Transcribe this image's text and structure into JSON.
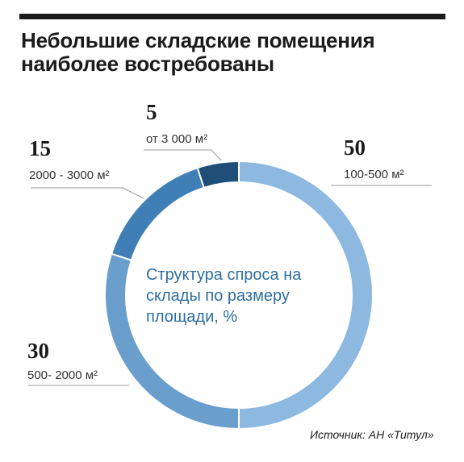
{
  "header": {
    "title_line1": "Небольшие складские помещения",
    "title_line2": "наиболее востребованы"
  },
  "chart_data": {
    "type": "pie",
    "donut": true,
    "center_text": "Структура спроса на склады по размеру площади, %",
    "center_lines": [
      "Структура спроса на",
      "склады по размеру",
      "площади, %"
    ],
    "categories": [
      "100-500 м²",
      "500- 2000 м²",
      "2000 - 3000 м²",
      "от 3 000 м²"
    ],
    "values": [
      50,
      30,
      15,
      5
    ],
    "unit": "%",
    "colors": [
      "#8db8e0",
      "#6a9ecd",
      "#3f7fb5",
      "#1f4e78"
    ],
    "legend": "none",
    "labels": [
      {
        "value": "50",
        "label": "100-500 м²"
      },
      {
        "value": "30",
        "label": "500- 2000 м²"
      },
      {
        "value": "15",
        "label": "2000 - 3000 м²"
      },
      {
        "value": "5",
        "label": "от 3 000 м²"
      }
    ]
  },
  "footer": {
    "source": "Источник: АН «Титул»"
  }
}
